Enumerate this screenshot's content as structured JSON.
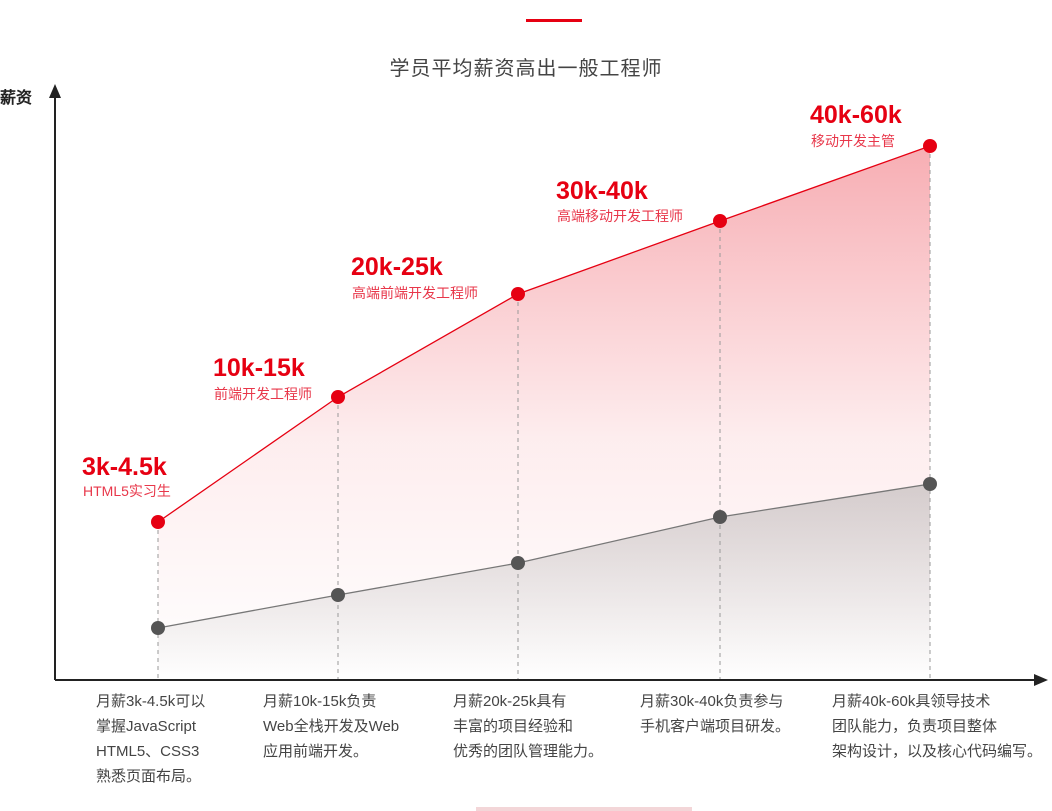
{
  "header": {
    "title": "学员平均薪资高出一般工程师"
  },
  "chart_data": {
    "type": "area",
    "ylabel": "薪资",
    "grid": false,
    "colors": {
      "red": "#e60012",
      "gray": "#555555"
    },
    "levels": [
      {
        "salary": "3k-4.5k",
        "role": "HTML5实习生"
      },
      {
        "salary": "10k-15k",
        "role": "前端开发工程师"
      },
      {
        "salary": "20k-25k",
        "role": "高端前端开发工程师"
      },
      {
        "salary": "30k-40k",
        "role": "高端移动开发工程师"
      },
      {
        "salary": "40k-60k",
        "role": "移动开发主管"
      }
    ],
    "descriptions": [
      [
        "月薪3k-4.5k可以",
        "掌握JavaScript",
        "HTML5、CSS3",
        "熟悉页面布局。"
      ],
      [
        "月薪10k-15k负责",
        "Web全栈开发及Web",
        "应用前端开发。"
      ],
      [
        "月薪20k-25k具有",
        "丰富的项目经验和",
        "优秀的团队管理能力。"
      ],
      [
        "月薪30k-40k负责参与",
        "手机客户端项目研发。"
      ],
      [
        "月薪40k-60k具领导技术",
        "团队能力，负责项目整体",
        "架构设计，以及核心代码编写。"
      ]
    ]
  }
}
